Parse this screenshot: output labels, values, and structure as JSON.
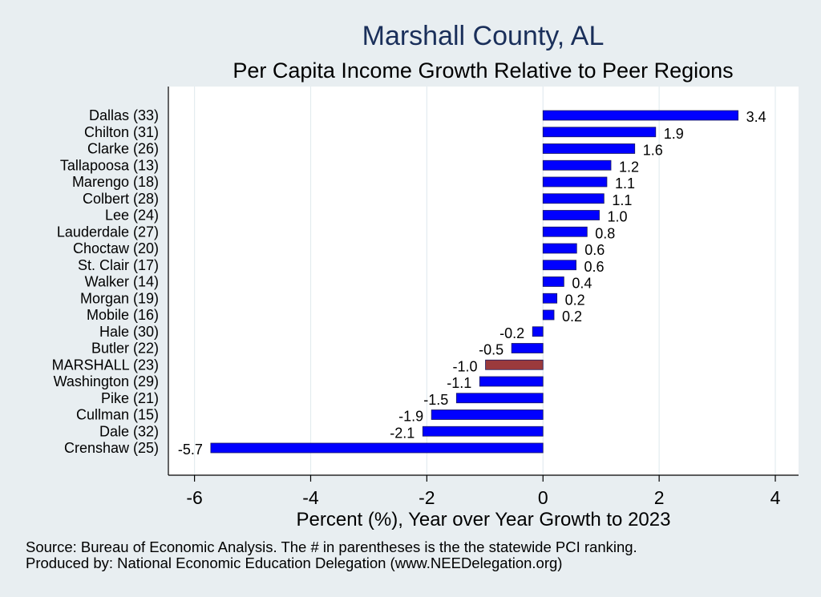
{
  "chart_data": {
    "type": "bar",
    "orientation": "horizontal",
    "title": "Marshall County, AL",
    "subtitle": "Per Capita Income Growth Relative to Peer Regions",
    "xlabel": "Percent (%), Year over Year Growth to 2023",
    "ylabel": "",
    "xlim": [
      -6.45,
      4.4
    ],
    "xticks": [
      -6,
      -4,
      -2,
      0,
      2,
      4
    ],
    "xtick_labels": [
      "-6",
      "-4",
      "-2",
      "0",
      "2",
      "4"
    ],
    "grid": "vertical",
    "categories": [
      "Dallas (33)",
      "Chilton (31)",
      "Clarke (26)",
      "Tallapoosa (13)",
      "Marengo (18)",
      "Colbert (28)",
      "Lee (24)",
      "Lauderdale (27)",
      "Choctaw (20)",
      "St. Clair (17)",
      "Walker (14)",
      "Morgan (19)",
      "Mobile (16)",
      "Hale (30)",
      "Butler (22)",
      "MARSHALL (23)",
      "Washington (29)",
      "Pike (21)",
      "Cullman (15)",
      "Dale (32)",
      "Crenshaw (25)"
    ],
    "values": [
      3.36,
      1.94,
      1.58,
      1.17,
      1.1,
      1.05,
      0.97,
      0.76,
      0.58,
      0.57,
      0.36,
      0.24,
      0.19,
      -0.18,
      -0.54,
      -0.99,
      -1.09,
      -1.49,
      -1.92,
      -2.07,
      -5.72
    ],
    "value_labels": [
      "3.4",
      "1.9",
      "1.6",
      "1.2",
      "1.1",
      "1.1",
      "1.0",
      "0.8",
      "0.6",
      "0.6",
      "0.4",
      "0.2",
      "0.2",
      "-0.2",
      "-0.5",
      "-1.0",
      "-1.1",
      "-1.5",
      "-1.9",
      "-2.1",
      "-5.7"
    ],
    "highlight_index": 15,
    "colors": {
      "default_bar": "#0000ff",
      "highlight_bar": "#9b3a3c",
      "plot_bg": "#ffffff",
      "page_bg": "#e8eef1",
      "title": "#1a2f5a",
      "grid": "#e3ecef"
    }
  },
  "footer": {
    "source": "Source: Bureau of Economic Analysis. The # in parentheses is the the statewide PCI ranking.",
    "producer": "Produced by: National Economic Education Delegation (www.NEEDelegation.org)"
  }
}
